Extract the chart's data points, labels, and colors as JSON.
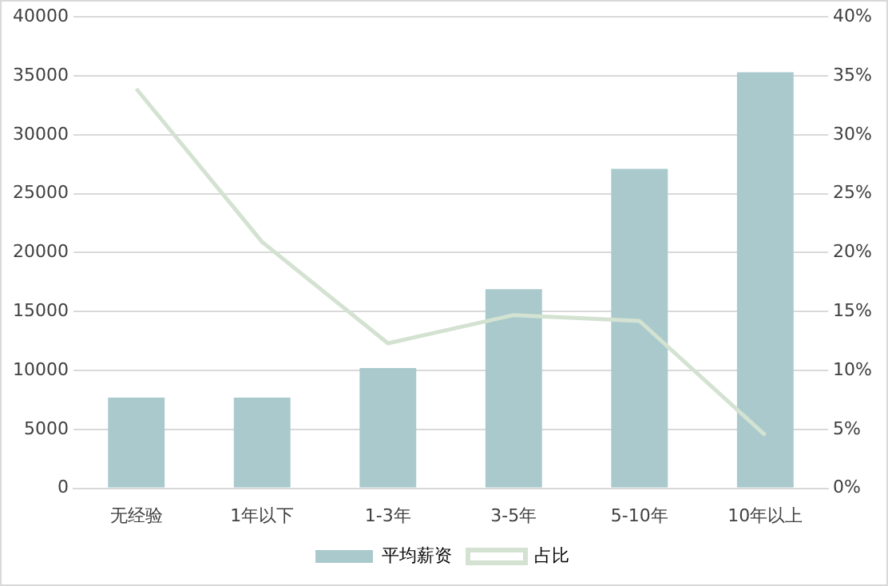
{
  "chart_data": {
    "type": "bar",
    "categories": [
      "无经验",
      "1年以下",
      "1-3年",
      "3-5年",
      "5-10年",
      "10年以上"
    ],
    "series": [
      {
        "name": "平均薪资",
        "color": "#a9c9cc",
        "values": [
          7700,
          7700,
          10200,
          16900,
          27100,
          35300
        ]
      },
      {
        "name": "占比",
        "type": "line",
        "axis": "y2",
        "color": "#d3e2d1",
        "values": [
          33.9,
          20.9,
          12.3,
          14.7,
          14.2,
          4.5
        ]
      }
    ],
    "ylim": [
      0,
      40000
    ],
    "yticks": [
      0,
      5000,
      10000,
      15000,
      20000,
      25000,
      30000,
      35000,
      40000
    ],
    "y2lim": [
      0,
      40
    ],
    "y2ticks": [
      {
        "value": 0,
        "label": "0%"
      },
      {
        "value": 5,
        "label": "5%"
      },
      {
        "value": 10,
        "label": "10%"
      },
      {
        "value": 15,
        "label": "15%"
      },
      {
        "value": 20,
        "label": "20%"
      },
      {
        "value": 25,
        "label": "25%"
      },
      {
        "value": 30,
        "label": "30%"
      },
      {
        "value": 35,
        "label": "35%"
      },
      {
        "value": 40,
        "label": "40%"
      }
    ],
    "grid": "y",
    "legend": "bottom",
    "marker": "none",
    "line_style": "solid"
  }
}
